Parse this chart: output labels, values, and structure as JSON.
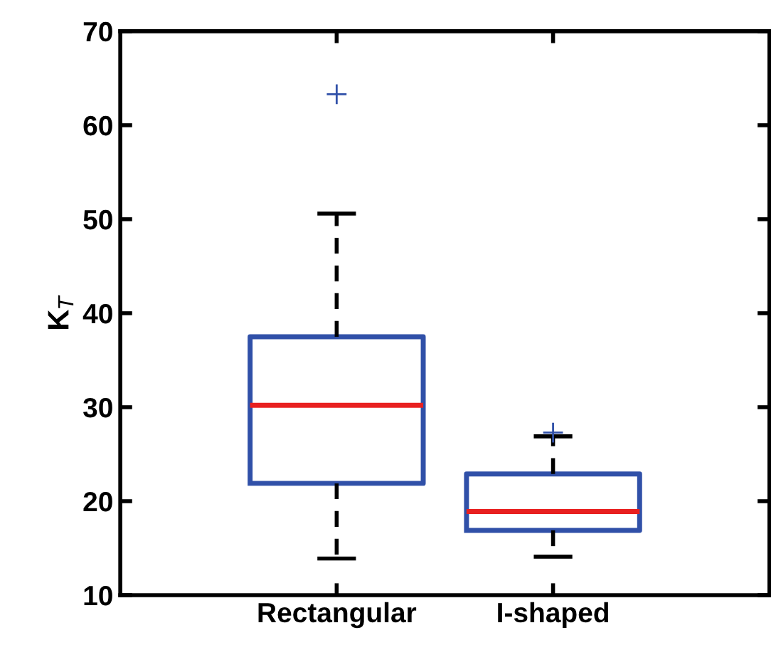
{
  "chart_data": {
    "type": "box",
    "ylabel": "K$_{T}$",
    "categories": [
      "Rectangular",
      "I-shaped"
    ],
    "boxes": [
      {
        "low": 13.9,
        "q1": 21.9,
        "median": 30.2,
        "q3": 37.5,
        "high": 50.6,
        "outliers": [
          63.3
        ]
      },
      {
        "low": 14.1,
        "q1": 16.9,
        "median": 18.9,
        "q3": 22.9,
        "high": 26.9,
        "outliers": [
          27.3
        ]
      }
    ],
    "color": "#3050a8",
    "ylim": [
      10,
      70
    ],
    "yticks": [
      10,
      20,
      30,
      40,
      50,
      60,
      70
    ],
    "grid": false
  }
}
